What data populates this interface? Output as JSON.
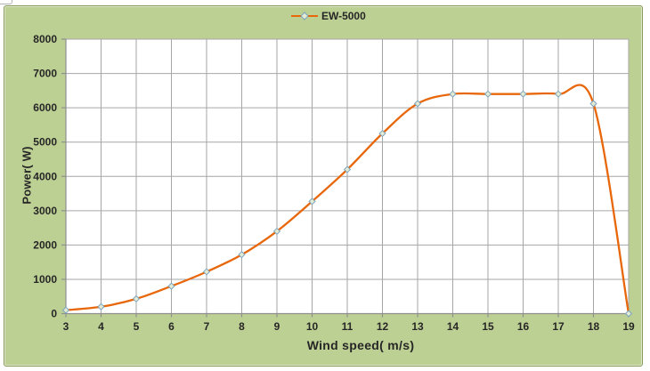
{
  "chart_data": {
    "type": "line",
    "smooth": true,
    "title": "",
    "xlabel": "Wind speed( m/s)",
    "ylabel": "Power( W)",
    "xlim": [
      3,
      19
    ],
    "ylim": [
      0,
      8000
    ],
    "x_ticks": [
      3,
      4,
      5,
      6,
      7,
      8,
      9,
      10,
      11,
      12,
      13,
      14,
      15,
      16,
      17,
      18,
      19
    ],
    "y_ticks": [
      0,
      1000,
      2000,
      3000,
      4000,
      5000,
      6000,
      7000,
      8000
    ],
    "grid": true,
    "legend_position": "top-center",
    "series": [
      {
        "name": "EW-5000",
        "marker": "diamond",
        "x": [
          3,
          4,
          5,
          6,
          7,
          8,
          9,
          10,
          11,
          12,
          13,
          14,
          15,
          16,
          17,
          18,
          19
        ],
        "values": [
          100,
          200,
          430,
          800,
          1220,
          1720,
          2400,
          3270,
          4200,
          5250,
          6120,
          6400,
          6400,
          6400,
          6400,
          6120,
          0
        ]
      }
    ]
  },
  "colors": {
    "chart_background": "#bdd094",
    "chart_border": "#87995a",
    "plot_background": "#ffffff",
    "gridline": "#a6a6a6",
    "axis_line": "#8f8f8f",
    "series_line": "#e8670b",
    "marker_fill": "#e3ecd2",
    "marker_stroke": "#7ba3bf",
    "text": "#262626"
  }
}
